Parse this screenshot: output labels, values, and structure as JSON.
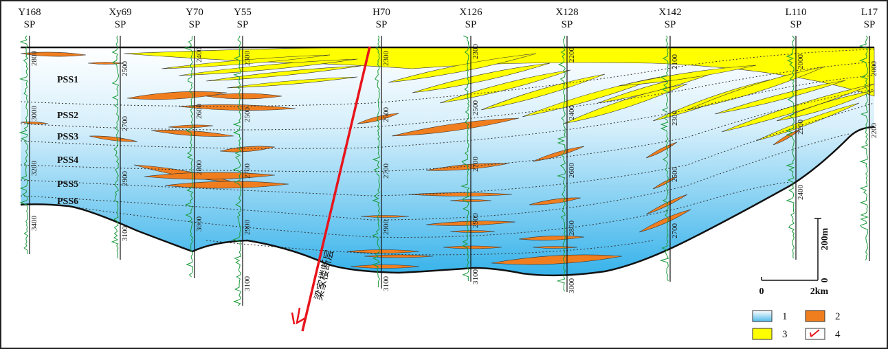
{
  "wells": [
    {
      "name": "Y168",
      "log": "SP",
      "depths": [
        2800,
        3000,
        3200,
        3400
      ]
    },
    {
      "name": "Xy69",
      "log": "SP",
      "depths": [
        2500,
        2700,
        2900,
        3100
      ]
    },
    {
      "name": "Y70",
      "log": "SP",
      "depths": [
        2400,
        2600,
        2800,
        3000
      ]
    },
    {
      "name": "Y55",
      "log": "SP",
      "depths": [
        2300,
        2500,
        2700,
        2900,
        3100
      ]
    },
    {
      "name": "H70",
      "log": "SP",
      "depths": [
        2300,
        2500,
        2700,
        2900,
        3100
      ]
    },
    {
      "name": "X126",
      "log": "SP",
      "depths": [
        2300,
        2500,
        2700,
        2900,
        3100
      ]
    },
    {
      "name": "X128",
      "log": "SP",
      "depths": [
        2200,
        2400,
        2600,
        2800,
        3000
      ]
    },
    {
      "name": "X142",
      "log": "SP",
      "depths": [
        2100,
        2300,
        2500,
        2700
      ]
    },
    {
      "name": "L110",
      "log": "SP",
      "depths": [
        2000,
        2200,
        2400
      ]
    },
    {
      "name": "L17",
      "log": "SP",
      "depths": [
        2000,
        2200
      ]
    }
  ],
  "intervals": [
    "PSS1",
    "PSS2",
    "PSS3",
    "PSS4",
    "PSS5",
    "PSS6"
  ],
  "fault": "梁家楼断层",
  "scale": {
    "vertical": "200m",
    "vertical_zero": "0",
    "horizontal_zero": "0",
    "horizontal": "2km"
  },
  "legend": [
    "1",
    "2",
    "3",
    "4"
  ]
}
